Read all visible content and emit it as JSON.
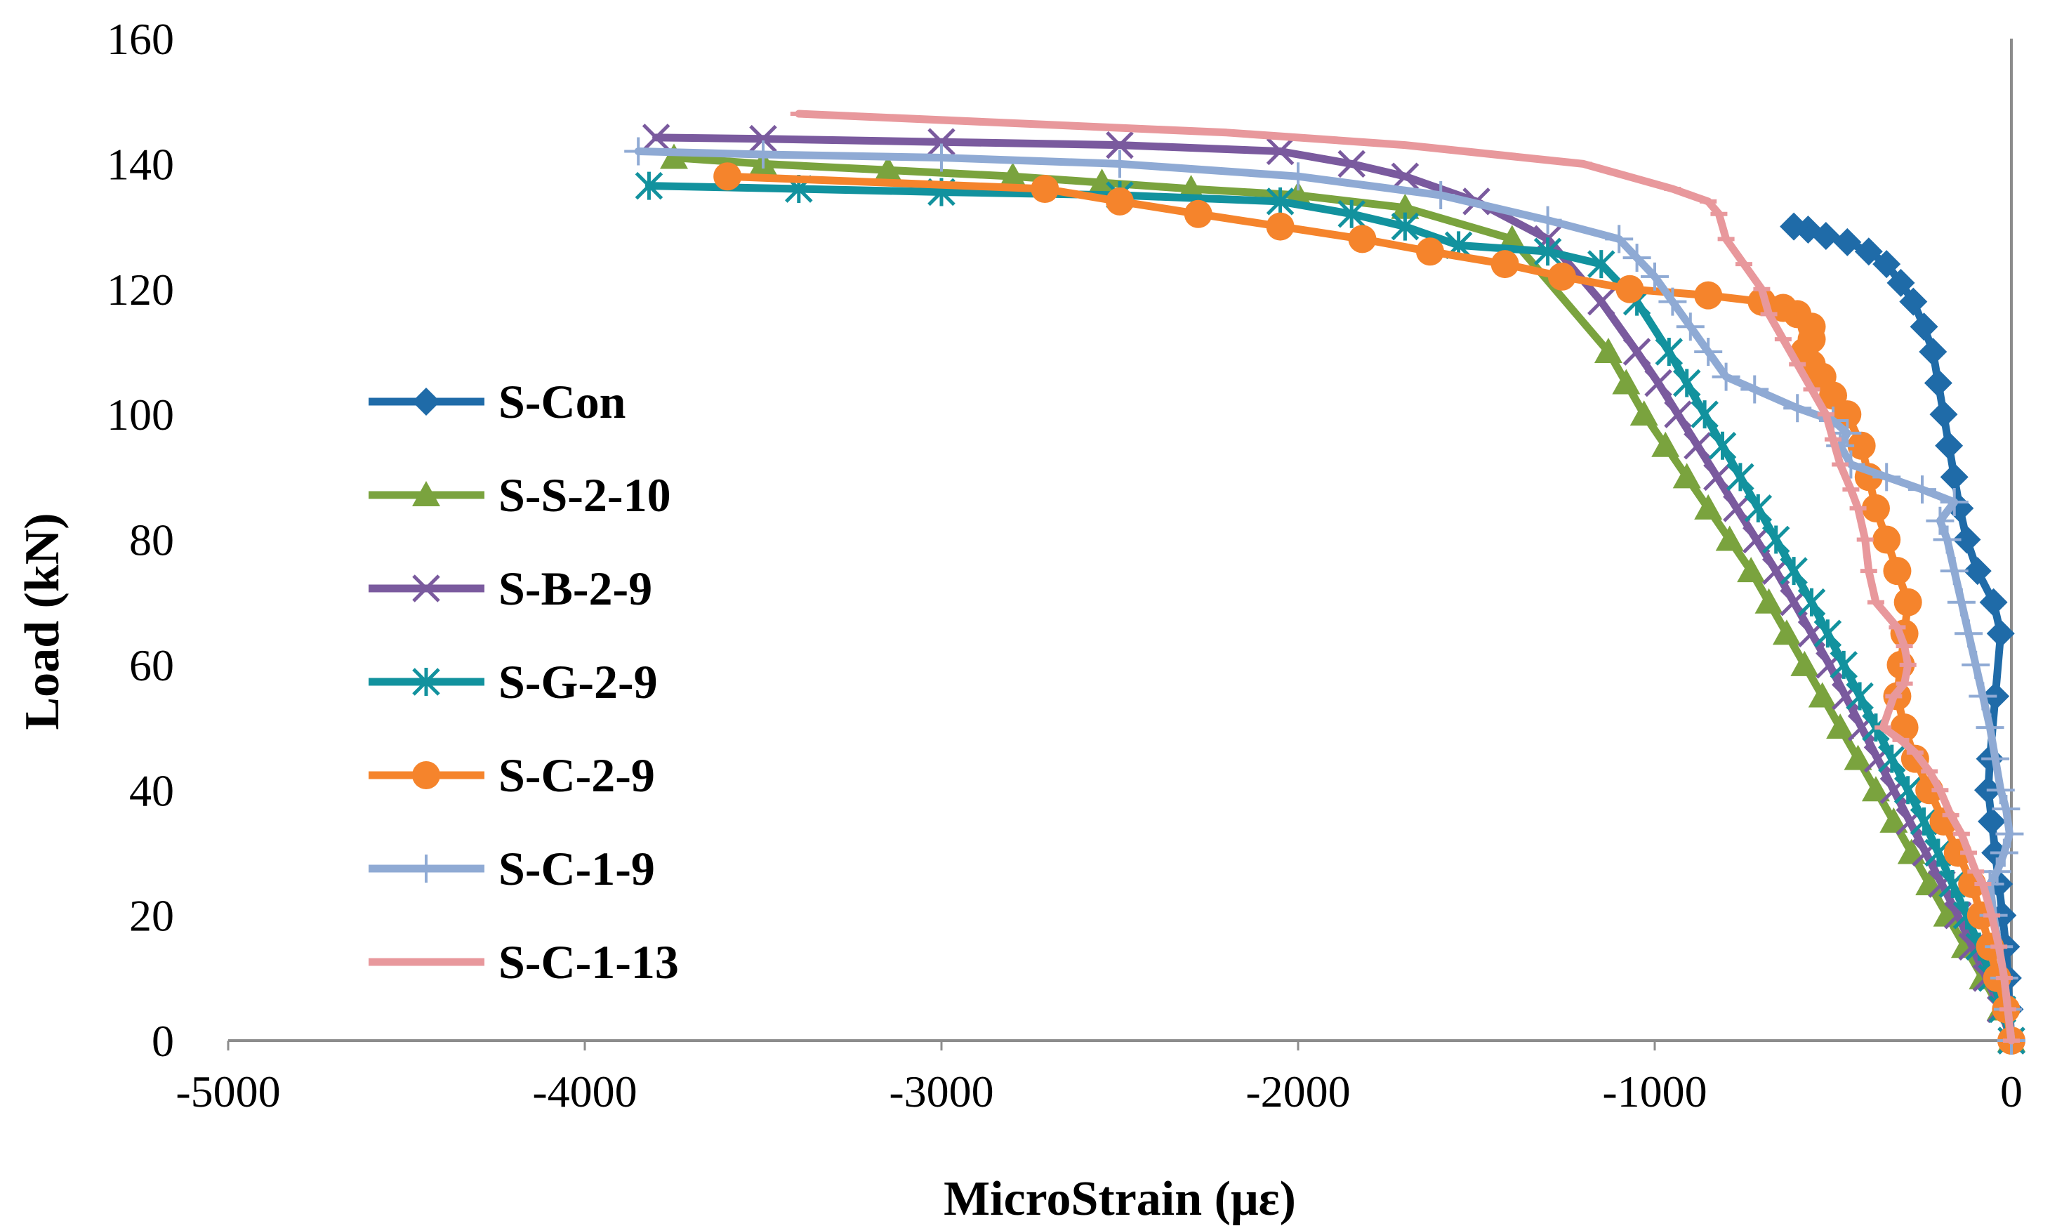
{
  "chart_data": {
    "type": "line",
    "title": "",
    "xlabel": "MicroStrain (με)",
    "ylabel": "Load (kN)",
    "xlim": [
      -5000,
      0
    ],
    "ylim": [
      0,
      160
    ],
    "xticks": [
      -5000,
      -4000,
      -3000,
      -2000,
      -1000,
      0
    ],
    "yticks": [
      0,
      20,
      40,
      60,
      80,
      100,
      120,
      140,
      160
    ],
    "x_tick_labels": [
      "-5000",
      "-4000",
      "-3000",
      "-2000",
      "-1000",
      "0"
    ],
    "y_tick_labels": [
      "0",
      "20",
      "40",
      "60",
      "80",
      "100",
      "120",
      "140",
      "160"
    ],
    "grid": false,
    "legend_position": "left",
    "series": [
      {
        "name": "S-Con",
        "color": "#1f6ba8",
        "marker": "diamond",
        "x": [
          0,
          -5,
          -10,
          -15,
          -25,
          -35,
          -45,
          -55,
          -65,
          -60,
          -45,
          -30,
          -50,
          -95,
          -125,
          -145,
          -160,
          -175,
          -190,
          -205,
          -220,
          -245,
          -275,
          -310,
          -350,
          -400,
          -460,
          -520,
          -570,
          -610
        ],
        "y": [
          0,
          5,
          10,
          15,
          20,
          25,
          30,
          35,
          40,
          45,
          55,
          65,
          70,
          75,
          80,
          85,
          90,
          95,
          100,
          105,
          110,
          114,
          118,
          121,
          124,
          126,
          127.5,
          128.5,
          129.5,
          130
        ]
      },
      {
        "name": "S-S-2-10",
        "color": "#7aa33e",
        "marker": "triangle",
        "x": [
          0,
          -30,
          -80,
          -130,
          -180,
          -230,
          -280,
          -330,
          -380,
          -430,
          -480,
          -530,
          -580,
          -630,
          -680,
          -730,
          -790,
          -850,
          -910,
          -970,
          -1030,
          -1080,
          -1130,
          -1400,
          -1700,
          -2000,
          -2300,
          -2550,
          -2800,
          -3150,
          -3500,
          -3750
        ],
        "y": [
          0,
          5,
          10,
          15,
          20,
          25,
          30,
          35,
          40,
          45,
          50,
          55,
          60,
          65,
          70,
          75,
          80,
          85,
          90,
          95,
          100,
          105,
          110,
          128,
          133,
          135,
          136,
          137,
          138,
          139,
          140,
          141
        ]
      },
      {
        "name": "S-B-2-9",
        "color": "#7a5a9e",
        "marker": "x",
        "x": [
          0,
          -30,
          -70,
          -110,
          -150,
          -195,
          -240,
          -285,
          -330,
          -375,
          -420,
          -465,
          -510,
          -560,
          -610,
          -660,
          -715,
          -770,
          -825,
          -880,
          -935,
          -990,
          -1050,
          -1150,
          -1300,
          -1500,
          -1700,
          -1850,
          -2050,
          -2500,
          -3000,
          -3500,
          -3800
        ],
        "y": [
          0,
          5,
          10,
          15,
          20,
          25,
          30,
          35,
          40,
          45,
          50,
          55,
          60,
          65,
          70,
          75,
          80,
          85,
          90,
          95,
          100,
          105,
          110,
          118,
          128,
          134,
          138,
          140,
          142,
          143,
          143.5,
          144,
          144.2
        ]
      },
      {
        "name": "S-G-2-9",
        "color": "#12929e",
        "marker": "asterisk",
        "x": [
          0,
          -25,
          -55,
          -90,
          -125,
          -165,
          -205,
          -245,
          -290,
          -335,
          -380,
          -425,
          -470,
          -515,
          -560,
          -610,
          -660,
          -710,
          -760,
          -810,
          -860,
          -910,
          -960,
          -1050,
          -1150,
          -1300,
          -1550,
          -1700,
          -1850,
          -2050,
          -2500,
          -3000,
          -3400,
          -3820
        ],
        "y": [
          0,
          5,
          10,
          15,
          20,
          25,
          30,
          35,
          40,
          45,
          50,
          55,
          60,
          65,
          70,
          75,
          80,
          85,
          90,
          95,
          100,
          105,
          110,
          118,
          124,
          126,
          127,
          130,
          132,
          134,
          135,
          135.5,
          136,
          136.5
        ]
      },
      {
        "name": "S-C-2-9",
        "color": "#f5842c",
        "marker": "circle",
        "x": [
          0,
          -15,
          -40,
          -60,
          -85,
          -110,
          -150,
          -190,
          -230,
          -270,
          -300,
          -320,
          -310,
          -300,
          -290,
          -320,
          -350,
          -380,
          -400,
          -420,
          -460,
          -500,
          -530,
          -560,
          -580,
          -560,
          -560,
          -600,
          -640,
          -700,
          -850,
          -1070,
          -1260,
          -1420,
          -1630,
          -1820,
          -2050,
          -2280,
          -2500,
          -2710,
          -3600
        ],
        "y": [
          0,
          5,
          10,
          15,
          20,
          25,
          30,
          35,
          40,
          45,
          50,
          55,
          60,
          65,
          70,
          75,
          80,
          85,
          90,
          95,
          100,
          103,
          106,
          108,
          110,
          112,
          114,
          116,
          117,
          118,
          119,
          120,
          122,
          124,
          126,
          128,
          130,
          132,
          134,
          136,
          138
        ]
      },
      {
        "name": "S-C-1-9",
        "color": "#8faad4",
        "marker": "plus",
        "x": [
          0,
          -10,
          -20,
          -35,
          -50,
          -60,
          -40,
          -20,
          -5,
          -15,
          -30,
          -45,
          -60,
          -80,
          -100,
          -120,
          -140,
          -160,
          -180,
          -200,
          -160,
          -250,
          -350,
          -450,
          -480,
          -460,
          -500,
          -600,
          -720,
          -800,
          -850,
          -900,
          -950,
          -1000,
          -1050,
          -1100,
          -1300,
          -1600,
          -2000,
          -2500,
          -3000,
          -3500,
          -3850
        ],
        "y": [
          0,
          5,
          10,
          15,
          20,
          25,
          27,
          30,
          33,
          37,
          40,
          45,
          50,
          55,
          60,
          65,
          70,
          75,
          80,
          83,
          86,
          88,
          90,
          92,
          95,
          97,
          99,
          101,
          104,
          106,
          110,
          114,
          118,
          122,
          125,
          128,
          131,
          135,
          138,
          140,
          141,
          141.5,
          142
        ]
      },
      {
        "name": "S-C-1-13",
        "color": "#e8989c",
        "marker": "dash",
        "x": [
          0,
          -10,
          -20,
          -35,
          -55,
          -80,
          -100,
          -120,
          -140,
          -170,
          -200,
          -230,
          -270,
          -310,
          -360,
          -330,
          -300,
          -290,
          -300,
          -320,
          -380,
          -400,
          -410,
          -430,
          -450,
          -480,
          -500,
          -520,
          -560,
          -600,
          -640,
          -680,
          -700,
          -750,
          -800,
          -820,
          -850,
          -950,
          -1200,
          -1700,
          -2200,
          -2800,
          -3400
        ],
        "y": [
          0,
          5,
          10,
          15,
          20,
          25,
          27,
          30,
          33,
          36,
          40,
          43,
          46,
          48,
          50,
          55,
          57,
          60,
          63,
          66,
          70,
          75,
          80,
          85,
          88,
          92,
          96,
          100,
          104,
          108,
          112,
          116,
          120,
          124,
          128,
          132,
          134,
          136,
          140,
          143,
          145,
          146.5,
          148
        ]
      }
    ]
  }
}
